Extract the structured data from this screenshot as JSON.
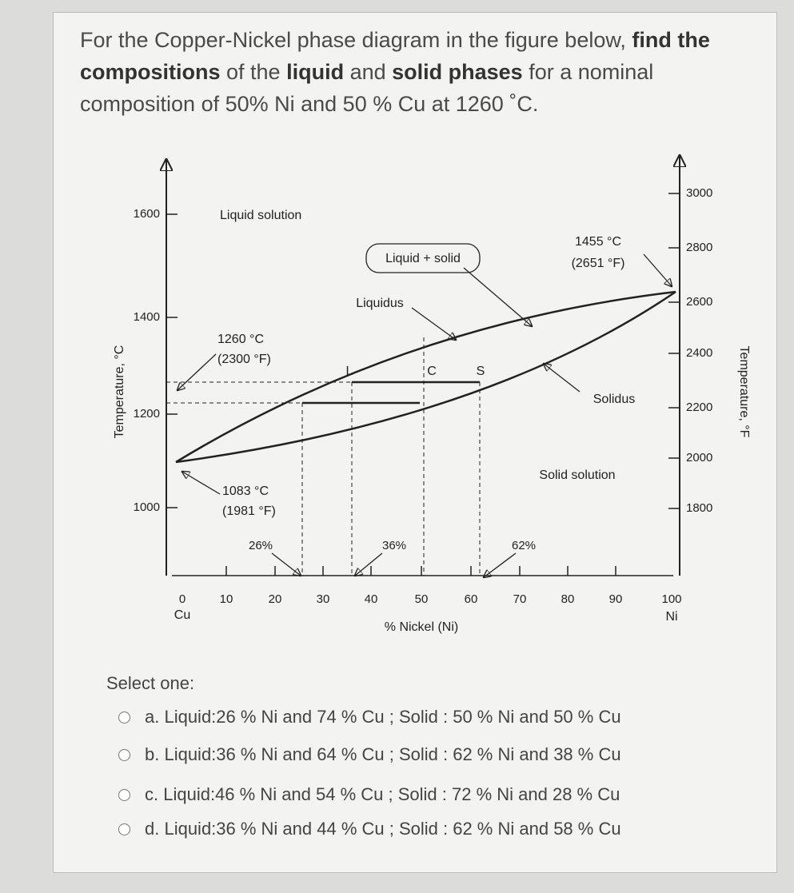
{
  "question": {
    "segments": [
      {
        "text": "For the Copper-Nickel phase diagram in the figure below, ",
        "bold": false
      },
      {
        "text": "find the compositions",
        "bold": true
      },
      {
        "text": " of the ",
        "bold": false
      },
      {
        "text": "liquid",
        "bold": true
      },
      {
        "text": " and ",
        "bold": false
      },
      {
        "text": "solid phases",
        "bold": true
      },
      {
        "text": " for a nominal composition of 50% Ni and 50 % Cu at 1260 ˚C.",
        "bold": false
      }
    ]
  },
  "figure": {
    "y_left_title": "Temperature, °C",
    "y_right_title": "Temperature, °F",
    "x_title": "% Nickel (Ni)",
    "y_left_ticks": [
      "1600",
      "1400",
      "1200",
      "1000"
    ],
    "y_right_ticks": [
      "3000",
      "2800",
      "2600",
      "2400",
      "2200",
      "2000",
      "1800"
    ],
    "x_ticks": [
      "0",
      "10",
      "20",
      "30",
      "40",
      "50",
      "60",
      "70",
      "80",
      "90",
      "100"
    ],
    "x_end_labels": [
      "Cu",
      "Ni"
    ],
    "regions": [
      "Liquid solution",
      "Liquid + solid",
      "Solid solution"
    ],
    "curves": [
      "Liquidus",
      "Solidus"
    ],
    "annotations": [
      "1455 °C",
      "(2651 °F)",
      "1260 °C",
      "(2300 °F)",
      "1083 °C",
      "(1981 °F)",
      "26%",
      "36%",
      "62%"
    ],
    "points": [
      "L",
      "C",
      "S"
    ]
  },
  "prompt": "Select one:",
  "options": [
    "a. Liquid:26 % Ni and 74 % Cu ; Solid : 50 % Ni and 50 % Cu",
    "b. Liquid:36 % Ni and 64 % Cu ; Solid : 62 % Ni and 38 % Cu",
    "c. Liquid:46 % Ni and 54 % Cu ; Solid : 72 % Ni and 28 % Cu",
    "d. Liquid:36 % Ni and 44 % Cu ; Solid : 62 % Ni and 58 % Cu"
  ]
}
